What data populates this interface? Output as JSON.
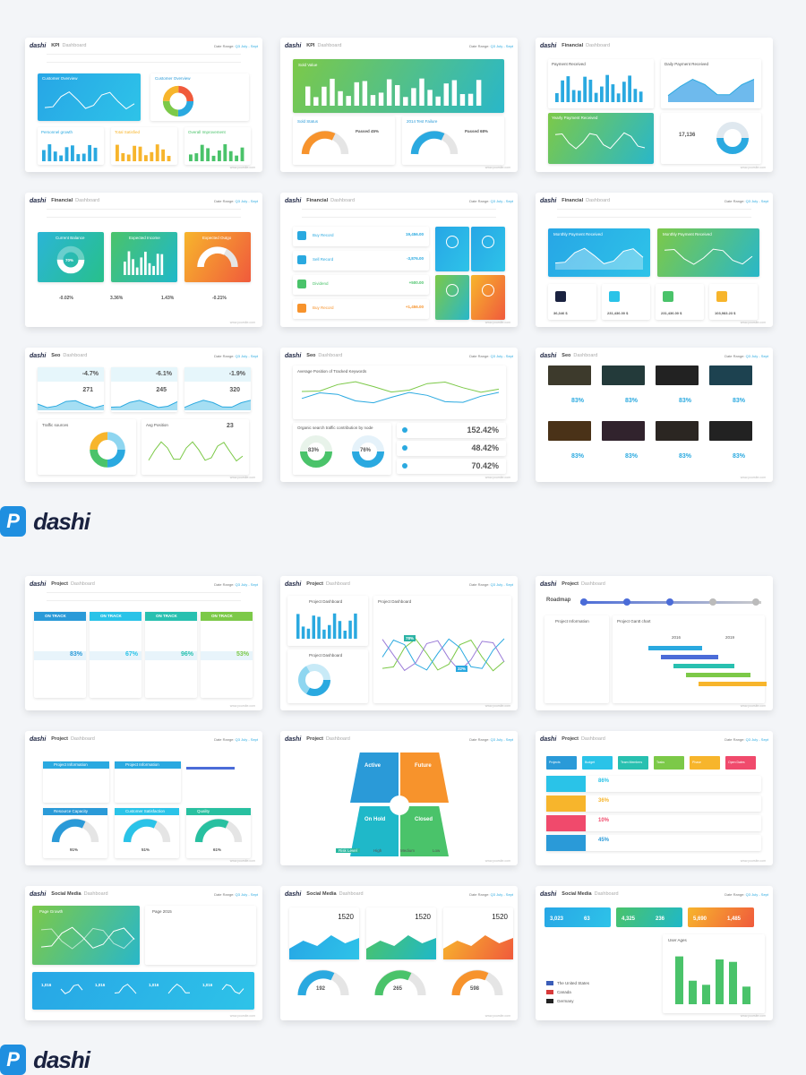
{
  "brand": {
    "icon": "P",
    "name": "dashi"
  },
  "slides_top": [
    {
      "logo": "dashi",
      "title": "KPI",
      "subtitle": "Dashboard",
      "date_label": "Date Range:",
      "date_value": "Q3 July - Sept",
      "panels": [
        "Customer Overview",
        "Customer Overview"
      ],
      "kpis": [
        "Personnel growth",
        "Total Satisfied",
        "Overall Improvement"
      ],
      "footer": "www.yoursite.com"
    },
    {
      "logo": "dashi",
      "title": "KPI",
      "subtitle": "Dashboard",
      "date_label": "Date Range:",
      "date_value": "Q3 July - Sept",
      "panels": [
        "Sold Value",
        "Sold Status",
        "2014 Test Failure"
      ],
      "kpis": [
        "Passed 45%",
        "Passed 68%"
      ],
      "footer": "www.yoursite.com"
    },
    {
      "logo": "dashi",
      "title": "Financial",
      "subtitle": "Dashboard",
      "panels": [
        "Payment Received",
        "Daily Payment Received",
        "Yearly Payment Received"
      ],
      "kpis": [
        "17,136"
      ],
      "footer": "www.yoursite.com"
    },
    {
      "logo": "dashi",
      "title": "Financial",
      "subtitle": "Dashboard",
      "date_label": "Date Range:",
      "date_value": "Q3 July - Sept",
      "panels": [
        "Current Balance",
        "Expected Income",
        "Expected Outgo"
      ],
      "kpis": [
        "70%",
        "-0.02%",
        "3.36%",
        "1.43%",
        "-0.21%"
      ],
      "footer": "www.yoursite.com"
    },
    {
      "logo": "dashi",
      "title": "Financial",
      "subtitle": "Dashboard",
      "date_label": "Date Range:",
      "date_value": "Q3 July - Sept",
      "rows": [
        "Buy Record",
        "Sell Record",
        "Dividend",
        "Buy Record"
      ],
      "row_values": [
        "19,456.00",
        "-3,876.00",
        "+500.00",
        "+1,456.00"
      ],
      "footer": "www.yoursite.com"
    },
    {
      "logo": "dashi",
      "title": "Financial",
      "subtitle": "Dashboard",
      "date_label": "Date Range:",
      "date_value": "Q3 July - Sept",
      "panels": [
        "Monthly Payment Received",
        "Monthly Payment Received"
      ],
      "kpis": [
        "36,346 $",
        "231,436.00 $",
        "231,436.00 $",
        "103,983.23 $"
      ],
      "footer": "www.yoursite.com"
    },
    {
      "logo": "dashi",
      "title": "Seo",
      "subtitle": "Dashboard",
      "date_label": "Date Range:",
      "date_value": "Q3 July - Sept",
      "kpis": [
        "-4.7%",
        "-6.1%",
        "-1.9%",
        "271",
        "245",
        "320",
        "23"
      ],
      "panels": [
        "Traffic sources",
        "Avg Position"
      ],
      "footer": "www.yoursite.com"
    },
    {
      "logo": "dashi",
      "title": "Seo",
      "subtitle": "Dashboard",
      "date_label": "Date Range:",
      "date_value": "Q3 July - Sept",
      "panels": [
        "Average Position of Tracked Keywords",
        "Organic search traffic contribution by node"
      ],
      "kpis": [
        "83%",
        "76%",
        "152.42%",
        "48.42%",
        "70.42%"
      ],
      "footer": "www.yoursite.com"
    },
    {
      "logo": "dashi",
      "title": "Seo",
      "subtitle": "Dashboard",
      "date_label": "Date Range:",
      "date_value": "Q3 July - Sept",
      "kpis": [
        "83%",
        "83%",
        "83%",
        "83%",
        "83%",
        "83%",
        "83%",
        "83%"
      ],
      "footer": "www.yoursite.com"
    }
  ],
  "slides_bottom": [
    {
      "logo": "dashi",
      "title": "Project",
      "subtitle": "Dashboard",
      "date_label": "Date Range:",
      "date_value": "Q3 July - Sept",
      "tracks": [
        "ON TRACK",
        "ON TRACK",
        "ON TRACK",
        "ON TRACK"
      ],
      "kpis": [
        "83%",
        "67%",
        "96%",
        "53%"
      ],
      "footer": "www.yoursite.com"
    },
    {
      "logo": "dashi",
      "title": "Project",
      "subtitle": "Dashboard",
      "date_label": "Date Range:",
      "date_value": "Q3 July - Sept",
      "panels": [
        "Project Dashboard",
        "Project Dashboard",
        "Project Dashboard"
      ],
      "kpis": [
        "78%",
        "32%"
      ],
      "footer": "www.yoursite.com"
    },
    {
      "logo": "dashi",
      "title": "Project",
      "subtitle": "Dashboard",
      "panels": [
        "Roadmap",
        "Project Information",
        "Project Gantt chart"
      ],
      "years": [
        "2016",
        "2019"
      ],
      "footer": "www.yoursite.com"
    },
    {
      "logo": "dashi",
      "title": "Project",
      "subtitle": "Dashboard",
      "date_label": "Date Range:",
      "date_value": "Q3 July - Sept",
      "panels": [
        "Project Information",
        "Project Information",
        "Resource Capacity",
        "Customer Satisfaction",
        "Quality"
      ],
      "kpis": [
        "91%",
        "51%",
        "61%"
      ],
      "footer": "www.yoursite.com"
    },
    {
      "logo": "dashi",
      "title": "Project",
      "subtitle": "Dashboard",
      "date_label": "Date Range:",
      "date_value": "Q3 July - Sept",
      "quadrants": [
        "Active",
        "Future",
        "On Hold",
        "Closed"
      ],
      "risk": [
        "Risk Level",
        "High",
        "Medium",
        "Low"
      ],
      "footer": "www.yoursite.com"
    },
    {
      "logo": "dashi",
      "title": "Project",
      "subtitle": "Dashboard",
      "date_label": "Date Range:",
      "date_value": "Q3 July - Sept",
      "headers": [
        "Projects",
        "Budget",
        "Team Members",
        "Tasks",
        "Phase",
        "Open Dates"
      ],
      "kpis": [
        "86%",
        "36%",
        "10%",
        "45%"
      ],
      "footer": "www.yoursite.com"
    },
    {
      "logo": "dashi",
      "title": "Social Media",
      "subtitle": "Dashboard",
      "date_label": "Date Range:",
      "date_value": "Q3 July - Sept",
      "panels": [
        "Page Growth",
        "Page 2015"
      ],
      "kpis": [
        "1,016",
        "1,016",
        "1,016",
        "1,016"
      ],
      "footer": "www.yoursite.com"
    },
    {
      "logo": "dashi",
      "title": "Social Media",
      "subtitle": "Dashboard",
      "date_label": "Date Range:",
      "date_value": "Q3 July - Sept",
      "kpis": [
        "1520",
        "1520",
        "1520",
        "192",
        "265",
        "598"
      ],
      "footer": "www.yoursite.com"
    },
    {
      "logo": "dashi",
      "title": "Social Media",
      "subtitle": "Dashboard",
      "date_label": "Date Range:",
      "date_value": "Q3 July - Sept",
      "kpis": [
        "3,023",
        "63",
        "4,325",
        "236",
        "5,690",
        "1,485"
      ],
      "countries": [
        "The United States",
        "Canada",
        "Germany"
      ],
      "panels": [
        "User Ages"
      ],
      "footer": "www.yoursite.com"
    }
  ]
}
